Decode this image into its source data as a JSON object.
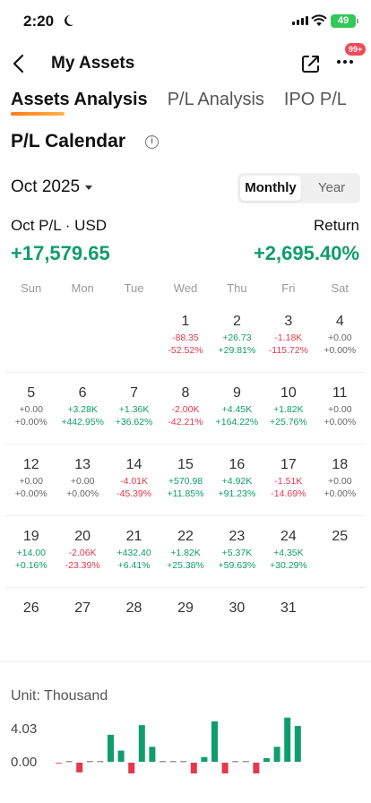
{
  "status": {
    "time": "2:20",
    "battery": "49"
  },
  "nav": {
    "title": "My Assets",
    "badge": "99+"
  },
  "tabs": [
    {
      "label": "Assets Analysis",
      "active": true
    },
    {
      "label": "P/L Analysis",
      "active": false
    },
    {
      "label": "IPO P/L",
      "active": false
    }
  ],
  "section": {
    "title": "P/L Calendar",
    "info_glyph": "i"
  },
  "period": {
    "month": "Oct 2025",
    "toggle_monthly": "Monthly",
    "toggle_year": "Year"
  },
  "summary": {
    "pl_label": "Oct P/L · USD",
    "return_label": "Return",
    "pl_value": "+17,579.65",
    "return_value": "+2,695.40%"
  },
  "weekdays": [
    "Sun",
    "Mon",
    "Tue",
    "Wed",
    "Thu",
    "Fri",
    "Sat"
  ],
  "calendar": [
    [
      null,
      null,
      null,
      {
        "day": "1",
        "pl": "-88.35",
        "ret": "-52.52%",
        "pl_sign": "neg",
        "ret_sign": "neg"
      },
      {
        "day": "2",
        "pl": "+26.73",
        "ret": "+29.81%",
        "pl_sign": "pos",
        "ret_sign": "pos"
      },
      {
        "day": "3",
        "pl": "-1.18K",
        "ret": "-115.72%",
        "pl_sign": "neg",
        "ret_sign": "neg"
      },
      {
        "day": "4",
        "pl": "+0.00",
        "ret": "+0.00%",
        "pl_sign": "neu",
        "ret_sign": "neu"
      }
    ],
    [
      {
        "day": "5",
        "pl": "+0.00",
        "ret": "+0.00%",
        "pl_sign": "neu",
        "ret_sign": "neu"
      },
      {
        "day": "6",
        "pl": "+3.28K",
        "ret": "+442.95%",
        "pl_sign": "pos",
        "ret_sign": "pos"
      },
      {
        "day": "7",
        "pl": "+1.36K",
        "ret": "+36.62%",
        "pl_sign": "pos",
        "ret_sign": "pos"
      },
      {
        "day": "8",
        "pl": "-2.00K",
        "ret": "-42.21%",
        "pl_sign": "neg",
        "ret_sign": "neg"
      },
      {
        "day": "9",
        "pl": "+4.45K",
        "ret": "+164.22%",
        "pl_sign": "pos",
        "ret_sign": "pos"
      },
      {
        "day": "10",
        "pl": "+1.82K",
        "ret": "+25.76%",
        "pl_sign": "pos",
        "ret_sign": "pos"
      },
      {
        "day": "11",
        "pl": "+0.00",
        "ret": "+0.00%",
        "pl_sign": "neu",
        "ret_sign": "neu"
      }
    ],
    [
      {
        "day": "12",
        "pl": "+0.00",
        "ret": "+0.00%",
        "pl_sign": "neu",
        "ret_sign": "neu"
      },
      {
        "day": "13",
        "pl": "+0.00",
        "ret": "+0.00%",
        "pl_sign": "neu",
        "ret_sign": "neu"
      },
      {
        "day": "14",
        "pl": "-4.01K",
        "ret": "-45.39%",
        "pl_sign": "neg",
        "ret_sign": "neg"
      },
      {
        "day": "15",
        "pl": "+570.98",
        "ret": "+11.85%",
        "pl_sign": "pos",
        "ret_sign": "pos"
      },
      {
        "day": "16",
        "pl": "+4.92K",
        "ret": "+91.23%",
        "pl_sign": "pos",
        "ret_sign": "pos"
      },
      {
        "day": "17",
        "pl": "-1.51K",
        "ret": "-14.69%",
        "pl_sign": "neg",
        "ret_sign": "neg"
      },
      {
        "day": "18",
        "pl": "+0.00",
        "ret": "+0.00%",
        "pl_sign": "neu",
        "ret_sign": "neu"
      }
    ],
    [
      {
        "day": "19",
        "pl": "+14.00",
        "ret": "+0.16%",
        "pl_sign": "pos",
        "ret_sign": "pos"
      },
      {
        "day": "20",
        "pl": "-2.06K",
        "ret": "-23.39%",
        "pl_sign": "neg",
        "ret_sign": "neg"
      },
      {
        "day": "21",
        "pl": "+432.40",
        "ret": "+6.41%",
        "pl_sign": "pos",
        "ret_sign": "pos"
      },
      {
        "day": "22",
        "pl": "+1.82K",
        "ret": "+25.38%",
        "pl_sign": "pos",
        "ret_sign": "pos"
      },
      {
        "day": "23",
        "pl": "+5.37K",
        "ret": "+59.63%",
        "pl_sign": "pos",
        "ret_sign": "pos"
      },
      {
        "day": "24",
        "pl": "+4.35K",
        "ret": "+30.29%",
        "pl_sign": "pos",
        "ret_sign": "pos"
      },
      {
        "day": "25",
        "pl": "",
        "ret": "",
        "pl_sign": "neu",
        "ret_sign": "neu"
      }
    ],
    [
      {
        "day": "26",
        "pl": "",
        "ret": "",
        "pl_sign": "neu",
        "ret_sign": "neu"
      },
      {
        "day": "27",
        "pl": "",
        "ret": "",
        "pl_sign": "neu",
        "ret_sign": "neu"
      },
      {
        "day": "28",
        "pl": "",
        "ret": "",
        "pl_sign": "neu",
        "ret_sign": "neu"
      },
      {
        "day": "29",
        "pl": "",
        "ret": "",
        "pl_sign": "neu",
        "ret_sign": "neu"
      },
      {
        "day": "30",
        "pl": "",
        "ret": "",
        "pl_sign": "neu",
        "ret_sign": "neu"
      },
      {
        "day": "31",
        "pl": "",
        "ret": "",
        "pl_sign": "neu",
        "ret_sign": "neu"
      },
      null
    ]
  ],
  "chart_data": {
    "type": "bar",
    "ylabel": "Unit: Thousand",
    "ticks": [
      {
        "value": 4.03,
        "label": "4.03"
      },
      {
        "value": 0.0,
        "label": "0.00"
      }
    ],
    "values": [
      -0.09,
      0.03,
      -1.18,
      0.0,
      0.0,
      3.28,
      1.36,
      -2.0,
      4.45,
      1.82,
      0.0,
      0.0,
      0.0,
      -4.01,
      0.57,
      4.92,
      -1.51,
      0.0,
      0.01,
      -2.06,
      0.43,
      1.82,
      5.37,
      4.35
    ],
    "colors": {
      "positive": "#0f9d6b",
      "negative": "#e5384d",
      "zero": "#999999"
    }
  },
  "colors": {
    "green": "#0f9d6b",
    "red": "#e5384d",
    "accent": "#ff7a1a"
  }
}
